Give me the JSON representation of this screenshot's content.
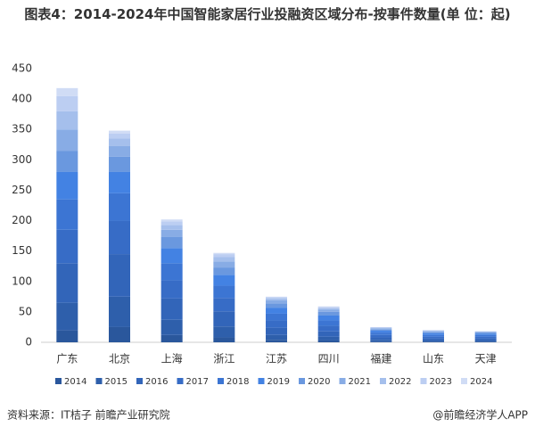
{
  "chart_data": {
    "type": "stacked_bar",
    "title": "图表4：2014-2024年中国智能家居行业投融资区域分布-按事件数量(单 位：起)",
    "categories": [
      "广东",
      "北京",
      "上海",
      "浙江",
      "江苏",
      "四川",
      "福建",
      "山东",
      "天津"
    ],
    "series": [
      {
        "name": "2014",
        "color": "#2a579c",
        "values": [
          20,
          25,
          12,
          8,
          4,
          3,
          1,
          1,
          1
        ]
      },
      {
        "name": "2015",
        "color": "#2e5fab",
        "values": [
          45,
          50,
          25,
          18,
          8,
          6,
          3,
          2,
          2
        ]
      },
      {
        "name": "2016",
        "color": "#3265b9",
        "values": [
          65,
          70,
          35,
          25,
          12,
          9,
          4,
          3,
          3
        ]
      },
      {
        "name": "2017",
        "color": "#376cc6",
        "values": [
          55,
          55,
          30,
          22,
          12,
          9,
          4,
          3,
          3
        ]
      },
      {
        "name": "2018",
        "color": "#3c75d3",
        "values": [
          50,
          45,
          28,
          20,
          11,
          9,
          4,
          3,
          3
        ]
      },
      {
        "name": "2019",
        "color": "#4382e3",
        "values": [
          45,
          35,
          25,
          18,
          10,
          8,
          3,
          3,
          2
        ]
      },
      {
        "name": "2020",
        "color": "#6a98df",
        "values": [
          35,
          25,
          18,
          12,
          7,
          6,
          2,
          2,
          2
        ]
      },
      {
        "name": "2021",
        "color": "#88ace5",
        "values": [
          35,
          18,
          12,
          10,
          5,
          4,
          2,
          1,
          1
        ]
      },
      {
        "name": "2022",
        "color": "#a5bfec",
        "values": [
          30,
          12,
          8,
          7,
          3,
          2,
          1,
          1,
          1
        ]
      },
      {
        "name": "2023",
        "color": "#bccef2",
        "values": [
          25,
          8,
          6,
          5,
          2,
          2,
          1,
          1,
          0
        ]
      },
      {
        "name": "2024",
        "color": "#d0dcf5",
        "values": [
          13,
          5,
          3,
          2,
          1,
          1,
          0,
          0,
          0
        ]
      }
    ],
    "ylim": [
      0,
      450
    ],
    "yticks": [
      0,
      50,
      100,
      150,
      200,
      250,
      300,
      350,
      400,
      450
    ],
    "grid": false,
    "source": "资料来源：IT桔子 前瞻产业研究院",
    "credit": "@前瞻经济学人APP"
  }
}
